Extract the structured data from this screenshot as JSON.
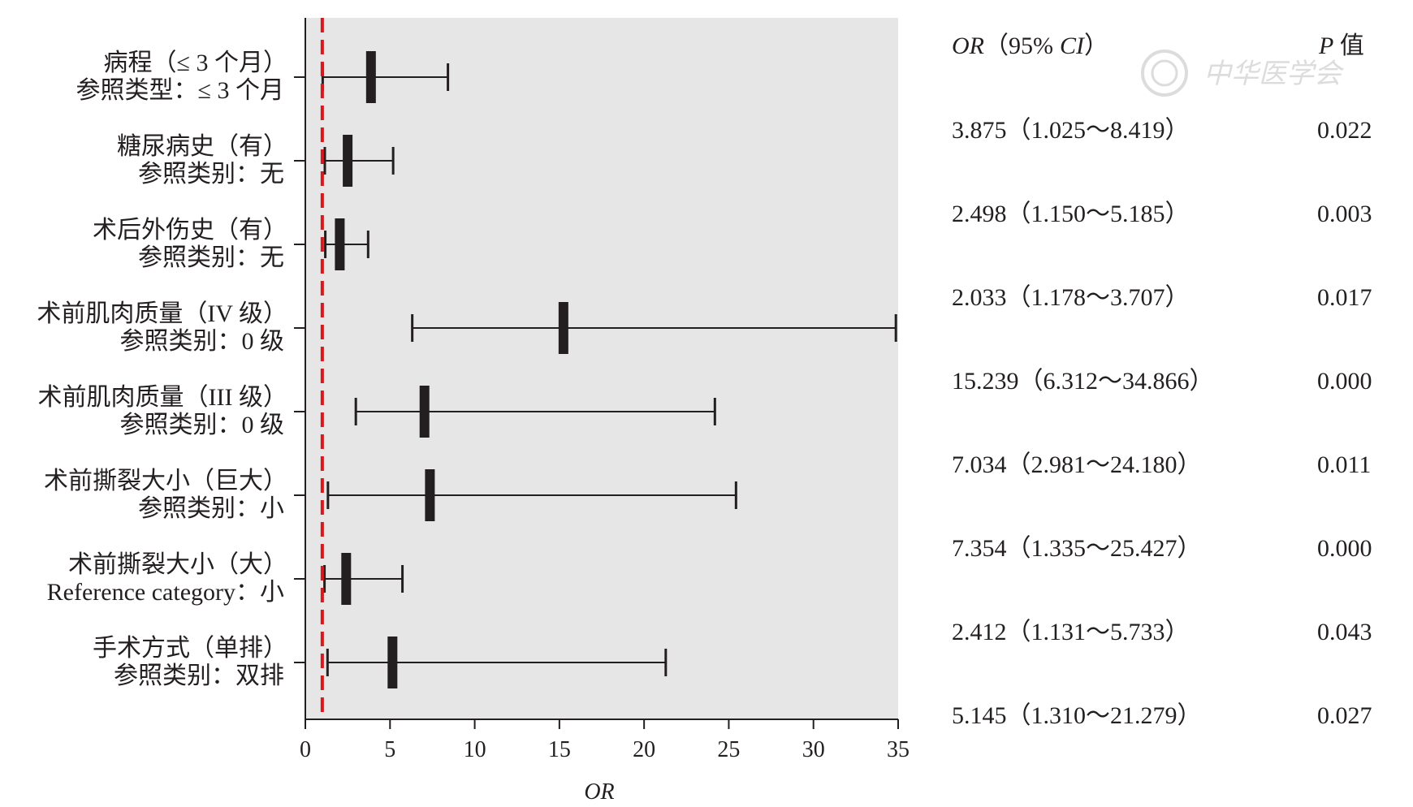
{
  "chart_data": {
    "type": "forest",
    "xlabel": "OR",
    "xlim": [
      0,
      35
    ],
    "xticks": [
      0,
      5,
      10,
      15,
      20,
      25,
      30,
      35
    ],
    "reference_line": 1,
    "column_headers": {
      "or_ci_italic": "OR",
      "or_ci_open": "（95%",
      "or_ci_italic2": "CI",
      "or_ci_close": "）",
      "p_italic": "P",
      "p_rest": " 值"
    },
    "rows": [
      {
        "label": "病程（≤ 3 个月）",
        "sublabel": "参照类型：≤ 3 个月",
        "or": 3.875,
        "lower": 1.025,
        "upper": 8.419,
        "or_text": "3.875（1.025～8.419）",
        "p_text": "0.022"
      },
      {
        "label": "糖尿病史（有）",
        "sublabel": "参照类别：无",
        "or": 2.498,
        "lower": 1.15,
        "upper": 5.185,
        "or_text": "2.498（1.150～5.185）",
        "p_text": "0.003"
      },
      {
        "label": "术后外伤史（有）",
        "sublabel": "参照类别：无",
        "or": 2.033,
        "lower": 1.178,
        "upper": 3.707,
        "or_text": "2.033（1.178～3.707）",
        "p_text": "0.017"
      },
      {
        "label": "术前肌肉质量（IV 级）",
        "sublabel": "参照类别：0 级",
        "or": 15.239,
        "lower": 6.312,
        "upper": 34.866,
        "or_text": "15.239（6.312～34.866）",
        "p_text": "0.000"
      },
      {
        "label": "术前肌肉质量（III 级）",
        "sublabel": "参照类别：0 级",
        "or": 7.034,
        "lower": 2.981,
        "upper": 24.18,
        "or_text": "7.034（2.981～24.180）",
        "p_text": "0.011"
      },
      {
        "label": "术前撕裂大小（巨大）",
        "sublabel": "参照类别：小",
        "or": 7.354,
        "lower": 1.335,
        "upper": 25.427,
        "or_text": "7.354（1.335～25.427）",
        "p_text": "0.000"
      },
      {
        "label": "术前撕裂大小（大）",
        "sublabel": "Reference category：小",
        "or": 2.412,
        "lower": 1.131,
        "upper": 5.733,
        "or_text": "2.412（1.131～5.733）",
        "p_text": "0.043"
      },
      {
        "label": "手术方式（单排）",
        "sublabel": "参照类别：双排",
        "or": 5.145,
        "lower": 1.31,
        "upper": 21.279,
        "or_text": "5.145（1.310～21.279）",
        "p_text": "0.027"
      }
    ]
  },
  "watermark": {
    "text": "中华医学会"
  },
  "colors": {
    "panel": "#e6e6e6",
    "ink": "#231f20",
    "reference": "#d7191c",
    "watermark": "#d9d9d9"
  }
}
